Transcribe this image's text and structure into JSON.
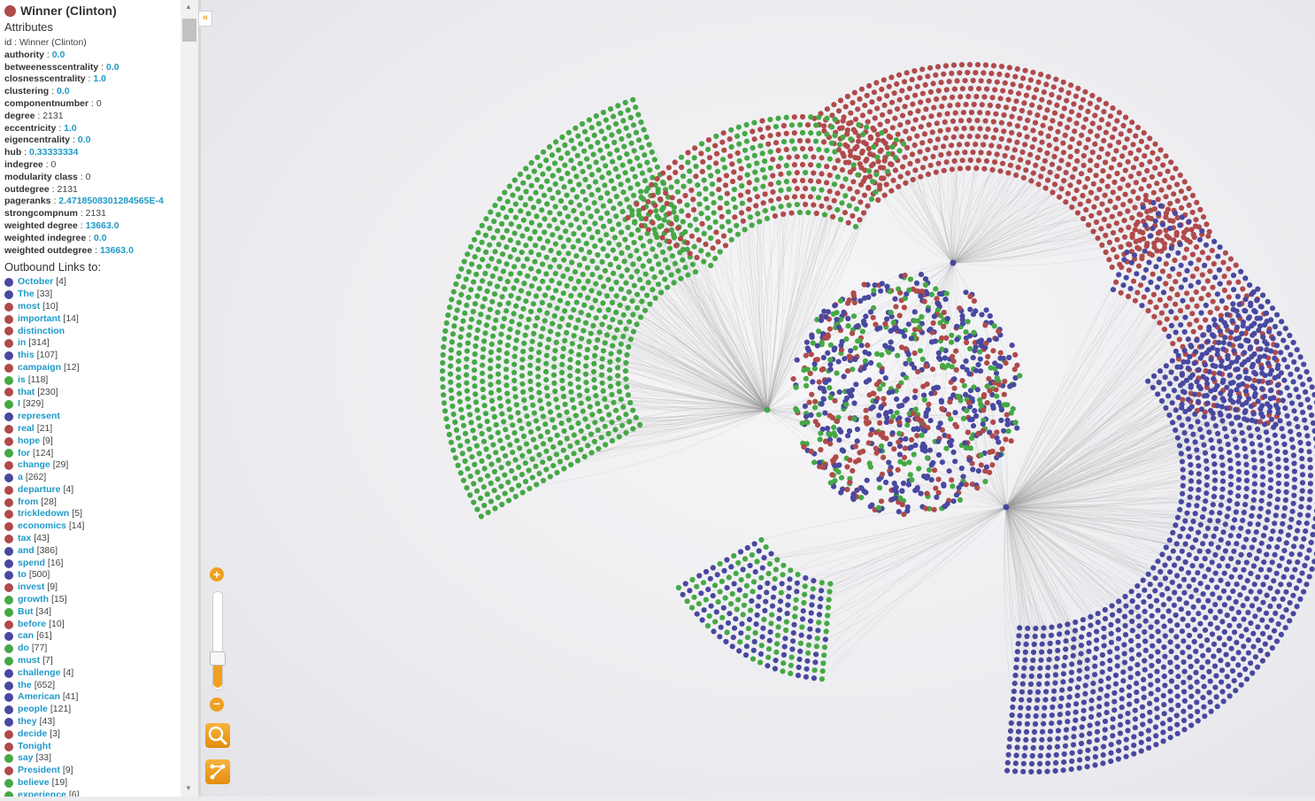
{
  "node": {
    "title": "Winner (Clinton)",
    "color": "#b04a4a"
  },
  "attributes_title": "Attributes",
  "attributes": [
    {
      "key": "id",
      "value": "Winner (Clinton)",
      "hl": false
    },
    {
      "key": "authority",
      "value": "0.0",
      "hl": true
    },
    {
      "key": "betweenesscentrality",
      "value": "0.0",
      "hl": true
    },
    {
      "key": "closnesscentrality",
      "value": "1.0",
      "hl": true
    },
    {
      "key": "clustering",
      "value": "0.0",
      "hl": true
    },
    {
      "key": "componentnumber",
      "value": "0",
      "hl": false
    },
    {
      "key": "degree",
      "value": "2131",
      "hl": false
    },
    {
      "key": "eccentricity",
      "value": "1.0",
      "hl": true
    },
    {
      "key": "eigencentrality",
      "value": "0.0",
      "hl": true
    },
    {
      "key": "hub",
      "value": "0.33333334",
      "hl": true
    },
    {
      "key": "indegree",
      "value": "0",
      "hl": false
    },
    {
      "key": "modularity class",
      "value": "0",
      "hl": false
    },
    {
      "key": "outdegree",
      "value": "2131",
      "hl": false
    },
    {
      "key": "pageranks",
      "value": "2.4718508301284565E-4",
      "hl": true
    },
    {
      "key": "strongcompnum",
      "value": "2131",
      "hl": false
    },
    {
      "key": "weighted degree",
      "value": "13663.0",
      "hl": true
    },
    {
      "key": "weighted indegree",
      "value": "0.0",
      "hl": true
    },
    {
      "key": "weighted outdegree",
      "value": "13663.0",
      "hl": true
    }
  ],
  "links_title": "Outbound Links to:",
  "links": [
    {
      "word": "October",
      "count": "[4]",
      "c": "blue"
    },
    {
      "word": "The",
      "count": "[33]",
      "c": "blue"
    },
    {
      "word": "most",
      "count": "[10]",
      "c": "red"
    },
    {
      "word": "important",
      "count": "[14]",
      "c": "red"
    },
    {
      "word": "distinction",
      "count": "",
      "c": "red"
    },
    {
      "word": "in",
      "count": "[314]",
      "c": "red"
    },
    {
      "word": "this",
      "count": "[107]",
      "c": "blue"
    },
    {
      "word": "campaign",
      "count": "[12]",
      "c": "red"
    },
    {
      "word": "is",
      "count": "[118]",
      "c": "green"
    },
    {
      "word": "that",
      "count": "[230]",
      "c": "red"
    },
    {
      "word": "I",
      "count": "[329]",
      "c": "green"
    },
    {
      "word": "represent",
      "count": "",
      "c": "blue"
    },
    {
      "word": "real",
      "count": "[21]",
      "c": "red"
    },
    {
      "word": "hope",
      "count": "[9]",
      "c": "red"
    },
    {
      "word": "for",
      "count": "[124]",
      "c": "green"
    },
    {
      "word": "change",
      "count": "[29]",
      "c": "red"
    },
    {
      "word": "a",
      "count": "[262]",
      "c": "blue"
    },
    {
      "word": "departure",
      "count": "[4]",
      "c": "red"
    },
    {
      "word": "from",
      "count": "[28]",
      "c": "red"
    },
    {
      "word": "trickledown",
      "count": "[5]",
      "c": "red"
    },
    {
      "word": "economics",
      "count": "[14]",
      "c": "red"
    },
    {
      "word": "tax",
      "count": "[43]",
      "c": "red"
    },
    {
      "word": "and",
      "count": "[386]",
      "c": "blue"
    },
    {
      "word": "spend",
      "count": "[16]",
      "c": "blue"
    },
    {
      "word": "to",
      "count": "[500]",
      "c": "blue"
    },
    {
      "word": "invest",
      "count": "[9]",
      "c": "red"
    },
    {
      "word": "growth",
      "count": "[15]",
      "c": "green"
    },
    {
      "word": "But",
      "count": "[34]",
      "c": "green"
    },
    {
      "word": "before",
      "count": "[10]",
      "c": "red"
    },
    {
      "word": "can",
      "count": "[61]",
      "c": "blue"
    },
    {
      "word": "do",
      "count": "[77]",
      "c": "green"
    },
    {
      "word": "must",
      "count": "[7]",
      "c": "green"
    },
    {
      "word": "challenge",
      "count": "[4]",
      "c": "blue"
    },
    {
      "word": "the",
      "count": "[652]",
      "c": "blue"
    },
    {
      "word": "American",
      "count": "[41]",
      "c": "blue"
    },
    {
      "word": "people",
      "count": "[121]",
      "c": "blue"
    },
    {
      "word": "they",
      "count": "[43]",
      "c": "blue"
    },
    {
      "word": "decide",
      "count": "[3]",
      "c": "red"
    },
    {
      "word": "Tonight",
      "count": "",
      "c": "red"
    },
    {
      "word": "say",
      "count": "[33]",
      "c": "green"
    },
    {
      "word": "President",
      "count": "[9]",
      "c": "red"
    },
    {
      "word": "believe",
      "count": "[19]",
      "c": "green"
    },
    {
      "word": "experience",
      "count": "[6]",
      "c": "green"
    }
  ],
  "colors": {
    "red": "#b04a4a",
    "green": "#45a845",
    "blue": "#4848a0",
    "accent": "#f0a020",
    "link": "#1f9ac9"
  },
  "controls": {
    "collapse": "«",
    "zoom_in": "+",
    "zoom_out": "−",
    "zoom_level": 0.3,
    "search_icon": "search-icon",
    "layout_icon": "layout-icon"
  }
}
